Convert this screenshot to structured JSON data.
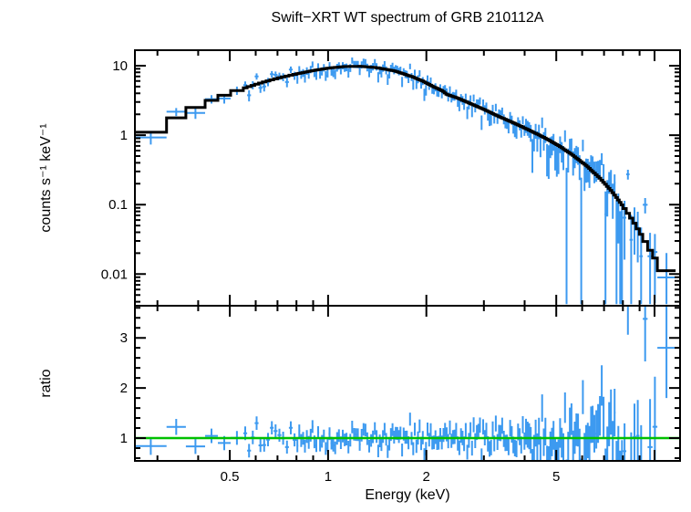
{
  "title": "Swift−XRT WT spectrum of GRB 210112A",
  "colors": {
    "background": "#ffffff",
    "data": "#3d9af0",
    "model": "#000000",
    "baseline": "#00c000",
    "frame": "#000000",
    "text": "#000000"
  },
  "chart_data": {
    "type": "scatter",
    "title": "Swift−XRT WT spectrum of GRB 210112A",
    "xlabel": "Energy (keV)",
    "x_axis": {
      "scale": "log",
      "min": 0.256,
      "max": 11.97,
      "major_ticks": [
        {
          "v": 0.5,
          "label": "0.5"
        },
        {
          "v": 1,
          "label": "1"
        },
        {
          "v": 2,
          "label": "2"
        },
        {
          "v": 5,
          "label": "5"
        }
      ],
      "unlabeled_major_ticks": [
        10
      ]
    },
    "top_panel": {
      "ylabel": "counts s⁻¹ keV⁻¹",
      "y_axis": {
        "scale": "log",
        "min": 0.0035,
        "max": 16.7,
        "major_ticks": [
          {
            "v": 0.01,
            "label": "0.01"
          },
          {
            "v": 0.1,
            "label": "0.1"
          },
          {
            "v": 1,
            "label": "1"
          },
          {
            "v": 10,
            "label": "10"
          }
        ]
      },
      "model_curve": [
        [
          0.29,
          1.1
        ],
        [
          0.33,
          1.6
        ],
        [
          0.37,
          2.2
        ],
        [
          0.42,
          2.9
        ],
        [
          0.47,
          3.6
        ],
        [
          0.52,
          4.3
        ],
        [
          0.58,
          5.1
        ],
        [
          0.65,
          6.0
        ],
        [
          0.72,
          6.8
        ],
        [
          0.8,
          7.6
        ],
        [
          0.9,
          8.5
        ],
        [
          1.0,
          9.2
        ],
        [
          1.12,
          9.7
        ],
        [
          1.25,
          9.8
        ],
        [
          1.4,
          9.4
        ],
        [
          1.6,
          8.4
        ],
        [
          1.8,
          7.0
        ],
        [
          1.95,
          6.0
        ],
        [
          2.1,
          5.0
        ],
        [
          2.25,
          4.3
        ],
        [
          2.3,
          3.9
        ],
        [
          2.5,
          3.4
        ],
        [
          2.75,
          2.8
        ],
        [
          3.0,
          2.35
        ],
        [
          3.3,
          1.9
        ],
        [
          3.7,
          1.5
        ],
        [
          4.1,
          1.2
        ],
        [
          4.6,
          0.92
        ],
        [
          5.1,
          0.7
        ],
        [
          5.6,
          0.52
        ],
        [
          6.2,
          0.36
        ],
        [
          6.8,
          0.24
        ],
        [
          7.4,
          0.155
        ],
        [
          8.0,
          0.095
        ],
        [
          8.6,
          0.058
        ],
        [
          9.2,
          0.034
        ],
        [
          9.8,
          0.02
        ],
        [
          10.4,
          0.013
        ],
        [
          11.6,
          0.009
        ]
      ]
    },
    "bottom_panel": {
      "ylabel": "ratio",
      "y_axis": {
        "scale": "linear",
        "min": 0.545,
        "max": 3.64,
        "major_ticks": [
          {
            "v": 1,
            "label": "1"
          },
          {
            "v": 2,
            "label": "2"
          },
          {
            "v": 3,
            "label": "3"
          }
        ],
        "minor_step": 0.2
      },
      "baseline": 1
    },
    "binning": [
      {
        "from": 0.256,
        "to": 0.32,
        "n": 1
      },
      {
        "from": 0.32,
        "to": 0.42,
        "n": 2
      },
      {
        "from": 0.42,
        "to": 0.55,
        "n": 3
      },
      {
        "from": 0.55,
        "to": 0.8,
        "n": 14
      },
      {
        "from": 0.8,
        "to": 1.4,
        "n": 42
      },
      {
        "from": 1.4,
        "to": 2.4,
        "n": 48
      },
      {
        "from": 2.4,
        "to": 4.2,
        "n": 50
      },
      {
        "from": 4.2,
        "to": 6.5,
        "n": 38
      },
      {
        "from": 6.5,
        "to": 8.0,
        "n": 16
      },
      {
        "from": 8.0,
        "to": 9.2,
        "n": 6
      },
      {
        "from": 9.2,
        "to": 10.2,
        "n": 3
      },
      {
        "from": 10.2,
        "to": 11.6,
        "n": 1
      }
    ],
    "noise": {
      "seed": 20210112,
      "frac_base": 0.1,
      "frac_scale": 0.08,
      "frac_max": 0.8,
      "ratio_boost_from": 4.0,
      "ratio_boost_factor": 1.5,
      "forced_outliers": [
        {
          "e": 0.285,
          "g": -0.9
        },
        {
          "e": 0.37,
          "g": -1.1
        },
        {
          "e": 0.5,
          "g": -0.7
        },
        {
          "e": 4.5,
          "g": 2.2
        },
        {
          "e": 5.3,
          "g": 2.0
        },
        {
          "e": 6.0,
          "g": 2.4
        },
        {
          "e": 6.9,
          "g": 2.6
        },
        {
          "e": 8.3,
          "g": 4.5
        },
        {
          "e": 9.5,
          "g": 2.8
        },
        {
          "e": 11.0,
          "g": 1.8,
          "g_top": -0.2
        }
      ]
    }
  }
}
